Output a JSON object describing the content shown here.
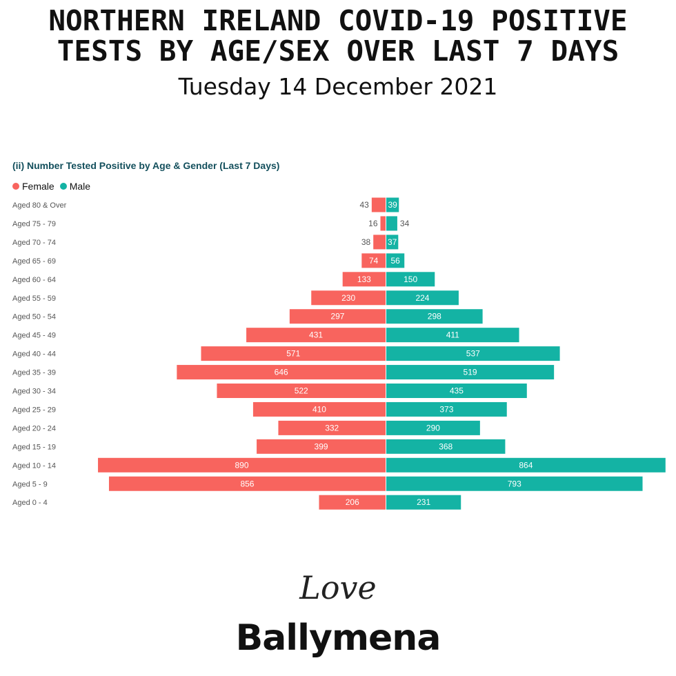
{
  "header": {
    "title_line1": "NORTHERN IRELAND COVID-19 POSITIVE",
    "title_line2": "TESTS BY AGE/SEX OVER LAST 7 DAYS",
    "date": "Tuesday 14 December 2021"
  },
  "legend": {
    "female": "Female",
    "male": "Male"
  },
  "colors": {
    "female": "#f8645e",
    "male": "#14b3a4",
    "title": "#134f5c"
  },
  "logo": {
    "script": "Love",
    "main": "Ballymena"
  },
  "chart_data": {
    "type": "bar",
    "title": "(ii) Number Tested Positive by Age & Gender (Last 7 Days)",
    "orientation": "horizontal-diverging",
    "categories": [
      "Aged 80 & Over",
      "Aged 75 - 79",
      "Aged 70 - 74",
      "Aged 65 - 69",
      "Aged 60 - 64",
      "Aged 55 - 59",
      "Aged 50 - 54",
      "Aged 45 - 49",
      "Aged 40 - 44",
      "Aged 35 - 39",
      "Aged 30 - 34",
      "Aged 25 - 29",
      "Aged 20 - 24",
      "Aged 15 - 19",
      "Aged 10 - 14",
      "Aged 5 - 9",
      "Aged 0 - 4"
    ],
    "series": [
      {
        "name": "Female",
        "values": [
          43,
          16,
          38,
          74,
          133,
          230,
          297,
          431,
          571,
          646,
          522,
          410,
          332,
          399,
          890,
          856,
          206
        ]
      },
      {
        "name": "Male",
        "values": [
          39,
          34,
          37,
          56,
          150,
          224,
          298,
          411,
          537,
          519,
          435,
          373,
          290,
          368,
          864,
          793,
          231
        ]
      }
    ],
    "legend_position": "top-left",
    "grid": false
  }
}
